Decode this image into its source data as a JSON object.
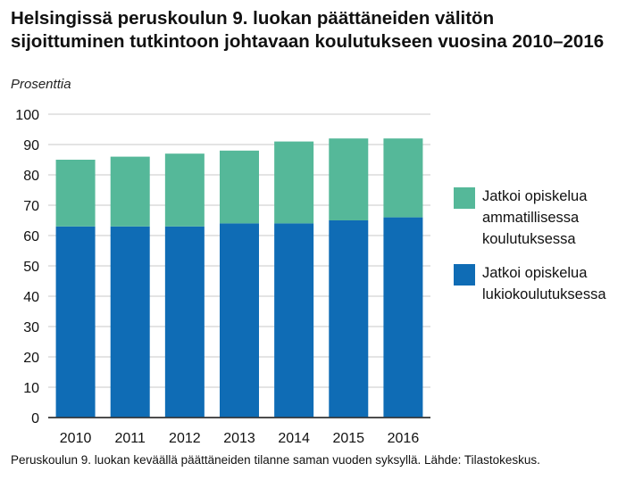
{
  "title_lines": [
    "Helsingissä peruskoulun 9. luokan päättäneiden välitön",
    "sijoittuminen tutkintoon johtavaan koulutukseen vuosina 2010–2016"
  ],
  "footnote": "Peruskoulun 9. luokan keväällä päättäneiden tilanne saman vuoden syksyllä. Lähde: Tilastokeskus.",
  "legend": [
    {
      "lines": [
        "Jatkoi opiskelua",
        "ammatillisessa",
        "koulutuksessa"
      ],
      "color": "#55b899"
    },
    {
      "lines": [
        "Jatkoi opiskelua",
        "lukiokoulutuksessa"
      ],
      "color": "#0f6cb5"
    }
  ],
  "chart_data": {
    "type": "bar",
    "stacked": true,
    "title": "Helsingissä peruskoulun 9. luokan päättäneiden välitön sijoittuminen tutkintoon johtavaan koulutukseen vuosina 2010–2016",
    "ylabel": "Prosenttia",
    "xlabel": "",
    "ylim": [
      0,
      100
    ],
    "yticks": [
      0,
      10,
      20,
      30,
      40,
      50,
      60,
      70,
      80,
      90,
      100
    ],
    "grid": true,
    "legend_position": "right",
    "categories": [
      "2010",
      "2011",
      "2012",
      "2013",
      "2014",
      "2015",
      "2016"
    ],
    "series": [
      {
        "name": "Jatkoi opiskelua lukiokoulutuksessa",
        "color": "#0f6cb5",
        "values": [
          63,
          63,
          63,
          64,
          64,
          65,
          66
        ]
      },
      {
        "name": "Jatkoi opiskelua ammatillisessa koulutuksessa",
        "color": "#55b899",
        "values": [
          22,
          23,
          24,
          24,
          27,
          27,
          26
        ]
      }
    ]
  }
}
